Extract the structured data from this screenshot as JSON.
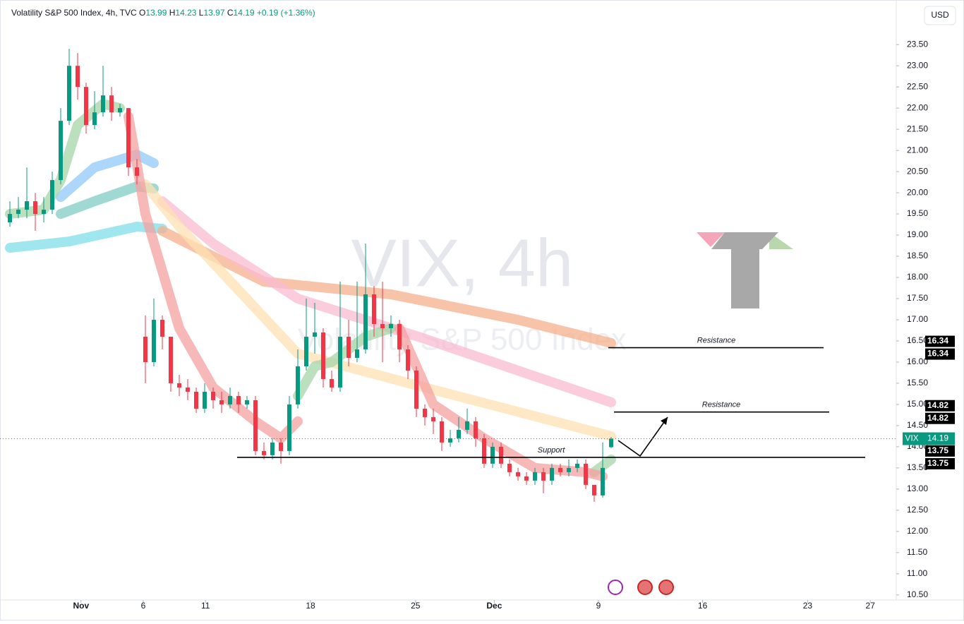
{
  "chart_data": {
    "type": "candlestick",
    "header": {
      "title": "Volatility S&P 500 Index, 4h, TVC",
      "ohlc_labels": [
        "O",
        "H",
        "L",
        "C"
      ],
      "change": "+0.19 (+1.36%)"
    },
    "currency": "USD",
    "watermark": [
      "VIX, 4h",
      "Volatility S&P 500 Index"
    ],
    "up_color": "#089981",
    "down_color": "#f23645",
    "categories": [
      null,
      null,
      null,
      null,
      null,
      null,
      null,
      null,
      null,
      null,
      null,
      null,
      null,
      null,
      null,
      null,
      null,
      null,
      null,
      null,
      null,
      null,
      null,
      null,
      null,
      null,
      null,
      null,
      null,
      null,
      null,
      null,
      null,
      null,
      null,
      null,
      null,
      null,
      null,
      null,
      null,
      null,
      null,
      null,
      null,
      null,
      null,
      null,
      null,
      null,
      null,
      null,
      null,
      null,
      null,
      null,
      null,
      null,
      null,
      null,
      null,
      null,
      null,
      null,
      null,
      null,
      null,
      null,
      null,
      null,
      null,
      null
    ],
    "open": [
      19.3,
      19.5,
      19.6,
      19.8,
      19.5,
      19.6,
      20.3,
      21.7,
      23.0,
      22.5,
      21.6,
      21.9,
      22.3,
      21.9,
      22.0,
      20.6,
      16.6,
      16.0,
      17.0,
      16.6,
      15.5,
      15.4,
      15.3,
      14.9,
      15.3,
      15.1,
      15.0,
      15.2,
      15.0,
      15.1,
      13.9,
      13.8,
      14.1,
      13.9,
      15.0,
      15.9,
      16.6,
      16.7,
      15.6,
      15.4,
      16.6,
      16.1,
      16.3,
      17.6,
      16.9,
      16.8,
      16.9,
      16.3,
      15.8,
      14.9,
      14.7,
      14.6,
      14.1,
      14.2,
      14.4,
      14.6,
      14.2,
      13.6,
      14.0,
      13.6,
      13.4,
      13.3,
      13.2,
      13.4,
      13.2,
      13.5,
      13.4,
      13.5,
      13.6,
      13.1,
      12.85,
      13.99
    ],
    "high": [
      19.8,
      19.9,
      20.6,
      20.0,
      19.9,
      20.5,
      22.0,
      23.4,
      23.3,
      22.6,
      22.4,
      23.0,
      22.5,
      22.1,
      22.0,
      20.8,
      17.1,
      17.5,
      17.1,
      16.6,
      15.7,
      15.6,
      15.4,
      15.5,
      15.4,
      15.3,
      15.4,
      15.3,
      15.2,
      15.2,
      14.1,
      14.2,
      14.2,
      15.2,
      16.3,
      17.5,
      17.4,
      16.8,
      15.8,
      17.9,
      17.0,
      17.9,
      18.8,
      17.8,
      17.9,
      17.1,
      17.0,
      16.4,
      15.9,
      15.0,
      14.9,
      14.7,
      14.4,
      14.7,
      14.9,
      14.7,
      14.3,
      14.1,
      14.1,
      13.7,
      13.5,
      13.4,
      13.5,
      13.5,
      13.6,
      13.6,
      13.7,
      13.7,
      13.7,
      13.1,
      14.1,
      14.23
    ],
    "low": [
      19.2,
      19.4,
      19.4,
      19.1,
      19.3,
      19.5,
      20.2,
      21.6,
      22.2,
      21.4,
      21.5,
      21.8,
      21.7,
      21.8,
      20.4,
      20.2,
      15.5,
      15.9,
      16.3,
      15.3,
      15.2,
      15.1,
      14.8,
      14.8,
      14.9,
      14.8,
      14.9,
      14.8,
      14.9,
      13.8,
      13.7,
      13.7,
      13.6,
      13.8,
      14.9,
      15.8,
      16.2,
      15.4,
      15.3,
      15.3,
      15.9,
      16.0,
      16.2,
      16.6,
      16.0,
      16.6,
      16.0,
      15.6,
      14.7,
      14.5,
      14.3,
      13.9,
      14.0,
      14.1,
      14.3,
      14.0,
      13.5,
      13.5,
      13.5,
      13.3,
      13.2,
      13.1,
      13.1,
      12.9,
      13.1,
      13.3,
      13.3,
      13.4,
      13.0,
      12.7,
      12.8,
      13.97
    ],
    "close": [
      19.5,
      19.6,
      19.8,
      19.5,
      19.6,
      20.3,
      21.7,
      23.0,
      22.5,
      21.6,
      21.9,
      22.3,
      21.9,
      22.0,
      20.6,
      20.4,
      16.0,
      17.0,
      16.6,
      15.5,
      15.4,
      15.3,
      14.9,
      15.3,
      15.1,
      15.0,
      15.2,
      15.0,
      15.1,
      13.9,
      13.8,
      14.1,
      13.9,
      15.0,
      15.9,
      16.6,
      16.7,
      15.6,
      15.4,
      16.6,
      16.1,
      16.3,
      17.6,
      16.9,
      16.8,
      16.9,
      16.3,
      15.8,
      14.9,
      14.7,
      14.6,
      14.1,
      14.2,
      14.4,
      14.6,
      14.2,
      13.6,
      14.0,
      13.6,
      13.4,
      13.3,
      13.2,
      13.4,
      13.2,
      13.5,
      13.4,
      13.5,
      13.6,
      13.1,
      12.85,
      13.5,
      14.19
    ],
    "bands": [
      {
        "color": "#80deea",
        "x": [
          0,
          7,
          15,
          18
        ],
        "values": [
          18.7,
          18.85,
          19.2,
          19.15
        ]
      },
      {
        "color": "#f5b08c",
        "x": [
          18,
          30,
          45,
          60,
          71
        ],
        "values": [
          19.1,
          17.9,
          17.6,
          17.0,
          16.45
        ]
      },
      {
        "color": "#80cbc4",
        "x": [
          6,
          10,
          15,
          17
        ],
        "values": [
          19.5,
          19.8,
          20.15,
          20.1
        ]
      },
      {
        "color": "#90caf9",
        "x": [
          6,
          10,
          15,
          17
        ],
        "values": [
          19.9,
          20.6,
          20.9,
          20.7
        ]
      },
      {
        "color": "#f8bbd0",
        "x": [
          18,
          24,
          34,
          49,
          71
        ],
        "values": [
          19.8,
          18.8,
          17.5,
          16.55,
          15.05
        ]
      },
      {
        "color": "#ffe0b2",
        "x": [
          16,
          20,
          34,
          49,
          71
        ],
        "values": [
          20.2,
          19.2,
          16.2,
          15.4,
          14.25
        ]
      },
      {
        "color": "#a5d6a7",
        "x": [
          0,
          4,
          6,
          8,
          11,
          13,
          20,
          34,
          36,
          38,
          42,
          45,
          50,
          69,
          71
        ],
        "values": [
          19.5,
          19.6,
          20.3,
          21.6,
          22.1,
          22.0,
          null,
          15.2,
          15.9,
          16.0,
          16.6,
          16.8,
          null,
          13.4,
          13.7
        ]
      },
      {
        "color": "#f4a0a0",
        "x": [
          14,
          16,
          20,
          24,
          29,
          32,
          34,
          40,
          46,
          50,
          56,
          62,
          68,
          70
        ],
        "values": [
          21.8,
          19.5,
          16.8,
          15.4,
          14.6,
          14.2,
          14.6,
          null,
          16.8,
          15.0,
          14.2,
          13.5,
          13.4,
          13.3
        ]
      }
    ],
    "levels": [
      {
        "label": "Resistance",
        "value": 16.34
      },
      {
        "label": "Resistance",
        "value": 14.82
      },
      {
        "label": "Support",
        "value": 13.75
      }
    ],
    "last": {
      "symbol": "VIX",
      "value": 14.19
    },
    "xlim": [
      -0.5,
      104.5
    ],
    "xticks": [
      {
        "value": 8.4,
        "label": "Nov"
      },
      {
        "value": 15.75,
        "label": "6"
      },
      {
        "value": 23.1,
        "label": "11"
      },
      {
        "value": 35.5,
        "label": "18"
      },
      {
        "value": 47.9,
        "label": "25"
      },
      {
        "value": 57.2,
        "label": "Dec"
      },
      {
        "value": 69.5,
        "label": "9"
      },
      {
        "value": 81.8,
        "label": "16"
      },
      {
        "value": 94.2,
        "label": "23"
      },
      {
        "value": 101.6,
        "label": "27"
      }
    ],
    "ylim": [
      10.38,
      23.97
    ],
    "yticks": [
      {
        "value": 10.5,
        "label": "10.50"
      },
      {
        "value": 11,
        "label": "11.00"
      },
      {
        "value": 11.5,
        "label": "11.50"
      },
      {
        "value": 12,
        "label": "12.00"
      },
      {
        "value": 12.5,
        "label": "12.50"
      },
      {
        "value": 13,
        "label": "13.00"
      },
      {
        "value": 13.5,
        "label": "13.50"
      },
      {
        "value": 14,
        "label": "14.00"
      },
      {
        "value": 14.5,
        "label": "14.50"
      },
      {
        "value": 15,
        "label": "15.00"
      },
      {
        "value": 15.5,
        "label": "15.50"
      },
      {
        "value": 16,
        "label": "16.00"
      },
      {
        "value": 16.5,
        "label": "16.50"
      },
      {
        "value": 17,
        "label": "17.00"
      },
      {
        "value": 17.5,
        "label": "17.50"
      },
      {
        "value": 18,
        "label": "18.00"
      },
      {
        "value": 18.5,
        "label": "18.50"
      },
      {
        "value": 19,
        "label": "19.00"
      },
      {
        "value": 19.5,
        "label": "19.50"
      },
      {
        "value": 20,
        "label": "20.00"
      },
      {
        "value": 20.5,
        "label": "20.50"
      },
      {
        "value": 21,
        "label": "21.00"
      },
      {
        "value": 21.5,
        "label": "21.50"
      },
      {
        "value": 22,
        "label": "22.00"
      },
      {
        "value": 22.5,
        "label": "22.50"
      },
      {
        "value": 23,
        "label": "23.00"
      },
      {
        "value": 23.5,
        "label": "23.50"
      }
    ]
  }
}
